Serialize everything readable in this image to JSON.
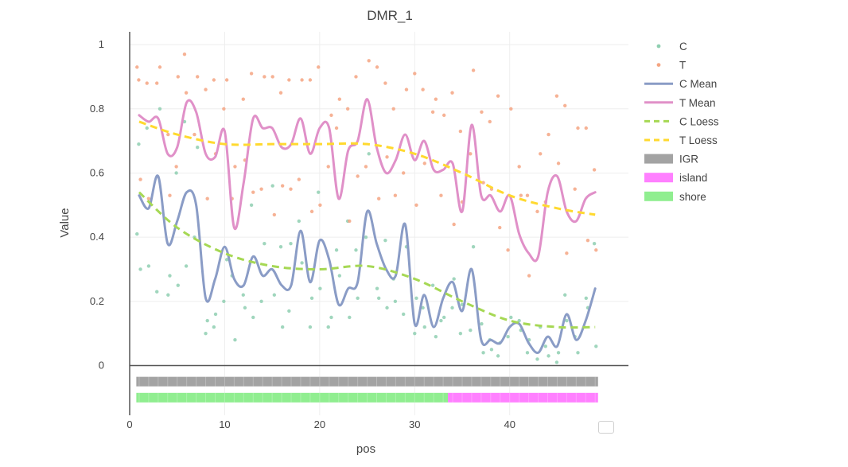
{
  "chart_data": {
    "type": "line",
    "title": "DMR_1",
    "xlabel": "pos",
    "ylabel": "Value",
    "xlim": [
      0,
      52.5
    ],
    "ylim": [
      -0.155,
      1.04
    ],
    "x_ticks": [
      0,
      10,
      20,
      30,
      40
    ],
    "y_ticks": [
      0,
      0.2,
      0.4,
      0.6,
      0.8,
      1
    ],
    "grid": true,
    "legend_position": "right",
    "legend": [
      "C",
      "T",
      "C Mean",
      "T Mean",
      "C Loess",
      "T Loess",
      "IGR",
      "island",
      "shore"
    ],
    "colors": {
      "C": "#8fcfb1",
      "T": "#f4a582",
      "C Mean": "#8a9cc6",
      "T Mean": "#e090c8",
      "C Loess": "#a6d854",
      "T Loess": "#ffd92f",
      "IGR": "#a3a3a3",
      "island": "#ff80ff",
      "shore": "#90ee90"
    },
    "series": [
      {
        "name": "C Mean",
        "kind": "line",
        "x": [
          1,
          2,
          3,
          4,
          5,
          6,
          7,
          8,
          9,
          10,
          11,
          12,
          13,
          14,
          15,
          16,
          17,
          18,
          19,
          20,
          21,
          22,
          23,
          24,
          25,
          26,
          27,
          28,
          29,
          30,
          31,
          32,
          33,
          34,
          35,
          36,
          37,
          38,
          39,
          40,
          41,
          42,
          43,
          44,
          45,
          46,
          47,
          48,
          49
        ],
        "y": [
          0.53,
          0.49,
          0.59,
          0.38,
          0.45,
          0.54,
          0.5,
          0.21,
          0.27,
          0.37,
          0.27,
          0.25,
          0.34,
          0.28,
          0.3,
          0.25,
          0.25,
          0.42,
          0.26,
          0.39,
          0.33,
          0.19,
          0.24,
          0.26,
          0.48,
          0.38,
          0.3,
          0.28,
          0.44,
          0.13,
          0.22,
          0.12,
          0.21,
          0.26,
          0.17,
          0.3,
          0.08,
          0.08,
          0.07,
          0.12,
          0.13,
          0.07,
          0.04,
          0.09,
          0.06,
          0.16,
          0.08,
          0.14,
          0.24
        ]
      },
      {
        "name": "T Mean",
        "kind": "line",
        "x": [
          1,
          2,
          3,
          4,
          5,
          6,
          7,
          8,
          9,
          10,
          11,
          12,
          13,
          14,
          15,
          16,
          17,
          18,
          19,
          20,
          21,
          22,
          23,
          24,
          25,
          26,
          27,
          28,
          29,
          30,
          31,
          32,
          33,
          34,
          35,
          36,
          37,
          38,
          39,
          40,
          41,
          42,
          43,
          44,
          45,
          46,
          47,
          48,
          49
        ],
        "y": [
          0.78,
          0.76,
          0.77,
          0.66,
          0.68,
          0.82,
          0.79,
          0.66,
          0.65,
          0.73,
          0.43,
          0.57,
          0.77,
          0.74,
          0.74,
          0.68,
          0.69,
          0.77,
          0.66,
          0.74,
          0.74,
          0.52,
          0.67,
          0.7,
          0.83,
          0.68,
          0.6,
          0.64,
          0.72,
          0.64,
          0.7,
          0.61,
          0.61,
          0.63,
          0.48,
          0.75,
          0.53,
          0.53,
          0.48,
          0.53,
          0.41,
          0.35,
          0.34,
          0.54,
          0.59,
          0.48,
          0.45,
          0.52,
          0.54
        ]
      },
      {
        "name": "C Loess",
        "kind": "dashed-line",
        "x": [
          1,
          5,
          10,
          15,
          20,
          25,
          30,
          35,
          40,
          45,
          49
        ],
        "y": [
          0.54,
          0.43,
          0.35,
          0.31,
          0.3,
          0.31,
          0.27,
          0.2,
          0.14,
          0.12,
          0.12
        ]
      },
      {
        "name": "T Loess",
        "kind": "dashed-line",
        "x": [
          1,
          5,
          10,
          15,
          20,
          25,
          30,
          35,
          40,
          45,
          49
        ],
        "y": [
          0.76,
          0.72,
          0.69,
          0.69,
          0.69,
          0.69,
          0.66,
          0.6,
          0.53,
          0.49,
          0.47
        ]
      },
      {
        "name": "C",
        "kind": "scatter",
        "x": [
          1,
          1,
          1,
          2,
          2,
          3,
          3,
          4,
          4,
          5,
          5,
          6,
          6,
          7,
          7,
          8,
          8,
          9,
          9,
          10,
          10,
          11,
          11,
          12,
          12,
          13,
          13,
          14,
          14,
          15,
          15,
          16,
          16,
          17,
          17,
          18,
          18,
          19,
          19,
          20,
          20,
          21,
          21,
          22,
          22,
          23,
          23,
          24,
          24,
          25,
          25,
          26,
          26,
          27,
          27,
          28,
          28,
          29,
          29,
          30,
          30,
          31,
          31,
          32,
          32,
          33,
          33,
          34,
          34,
          35,
          35,
          36,
          36,
          37,
          37,
          38,
          38,
          39,
          39,
          40,
          40,
          41,
          41,
          42,
          42,
          43,
          43,
          44,
          44,
          45,
          45,
          46,
          46,
          47,
          47,
          48,
          48,
          49,
          49
        ],
        "y": [
          0.41,
          0.69,
          0.3,
          0.74,
          0.31,
          0.8,
          0.23,
          0.22,
          0.28,
          0.6,
          0.25,
          0.76,
          0.31,
          0.68,
          0.4,
          0.1,
          0.14,
          0.12,
          0.16,
          0.33,
          0.2,
          0.08,
          0.28,
          0.22,
          0.18,
          0.5,
          0.15,
          0.38,
          0.2,
          0.56,
          0.22,
          0.37,
          0.12,
          0.17,
          0.38,
          0.32,
          0.45,
          0.12,
          0.21,
          0.54,
          0.24,
          0.15,
          0.12,
          0.28,
          0.36,
          0.45,
          0.15,
          0.36,
          0.21,
          0.66,
          0.4,
          0.24,
          0.21,
          0.39,
          0.18,
          0.27,
          0.2,
          0.37,
          0.16,
          0.1,
          0.21,
          0.18,
          0.12,
          0.09,
          0.25,
          0.15,
          0.14,
          0.18,
          0.27,
          0.1,
          0.19,
          0.37,
          0.11,
          0.13,
          0.04,
          0.08,
          0.05,
          0.03,
          0.07,
          0.15,
          0.09,
          0.14,
          0.11,
          0.04,
          0.08,
          0.12,
          0.02,
          0.03,
          0.06,
          0.01,
          0.04,
          0.22,
          0.14,
          0.04,
          0.09,
          0.21,
          0.18,
          0.38,
          0.06
        ]
      },
      {
        "name": "T",
        "kind": "scatter",
        "x": [
          1,
          1,
          1,
          2,
          2,
          3,
          3,
          4,
          4,
          5,
          5,
          6,
          6,
          7,
          7,
          8,
          8,
          9,
          9,
          10,
          10,
          11,
          11,
          12,
          12,
          13,
          13,
          14,
          14,
          15,
          15,
          16,
          16,
          17,
          17,
          18,
          18,
          19,
          19,
          20,
          20,
          21,
          21,
          22,
          22,
          23,
          23,
          24,
          24,
          25,
          25,
          26,
          26,
          27,
          27,
          28,
          28,
          29,
          29,
          30,
          30,
          31,
          31,
          32,
          32,
          33,
          33,
          34,
          34,
          35,
          35,
          36,
          36,
          37,
          37,
          38,
          38,
          39,
          39,
          40,
          40,
          41,
          41,
          42,
          42,
          43,
          43,
          44,
          44,
          45,
          45,
          46,
          46,
          47,
          47,
          48,
          48,
          49,
          49
        ],
        "y": [
          0.93,
          0.89,
          0.58,
          0.88,
          0.52,
          0.93,
          0.88,
          0.72,
          0.53,
          0.62,
          0.9,
          0.97,
          0.85,
          0.9,
          0.72,
          0.86,
          0.52,
          0.89,
          0.66,
          0.89,
          0.8,
          0.62,
          0.52,
          0.83,
          0.64,
          0.91,
          0.54,
          0.9,
          0.55,
          0.9,
          0.47,
          0.85,
          0.56,
          0.89,
          0.55,
          0.89,
          0.58,
          0.89,
          0.48,
          0.93,
          0.5,
          0.78,
          0.62,
          0.83,
          0.74,
          0.8,
          0.45,
          0.9,
          0.59,
          0.95,
          0.62,
          0.93,
          0.52,
          0.88,
          0.65,
          0.8,
          0.53,
          0.86,
          0.6,
          0.91,
          0.5,
          0.86,
          0.63,
          0.83,
          0.79,
          0.78,
          0.53,
          0.85,
          0.44,
          0.73,
          0.51,
          0.92,
          0.66,
          0.79,
          0.57,
          0.76,
          0.55,
          0.84,
          0.43,
          0.8,
          0.36,
          0.62,
          0.53,
          0.53,
          0.28,
          0.66,
          0.48,
          0.72,
          0.51,
          0.84,
          0.63,
          0.81,
          0.35,
          0.74,
          0.55,
          0.74,
          0.39,
          0.61,
          0.36
        ]
      }
    ],
    "annotation_tracks": [
      {
        "name": "IGR",
        "x_start": 0.7,
        "x_end": 49.3,
        "y": -0.05
      },
      {
        "name": "shore",
        "x_start": 0.7,
        "x_end": 33.5,
        "y": -0.1
      },
      {
        "name": "island",
        "x_start": 33.5,
        "x_end": 49.3,
        "y": -0.1
      }
    ]
  }
}
